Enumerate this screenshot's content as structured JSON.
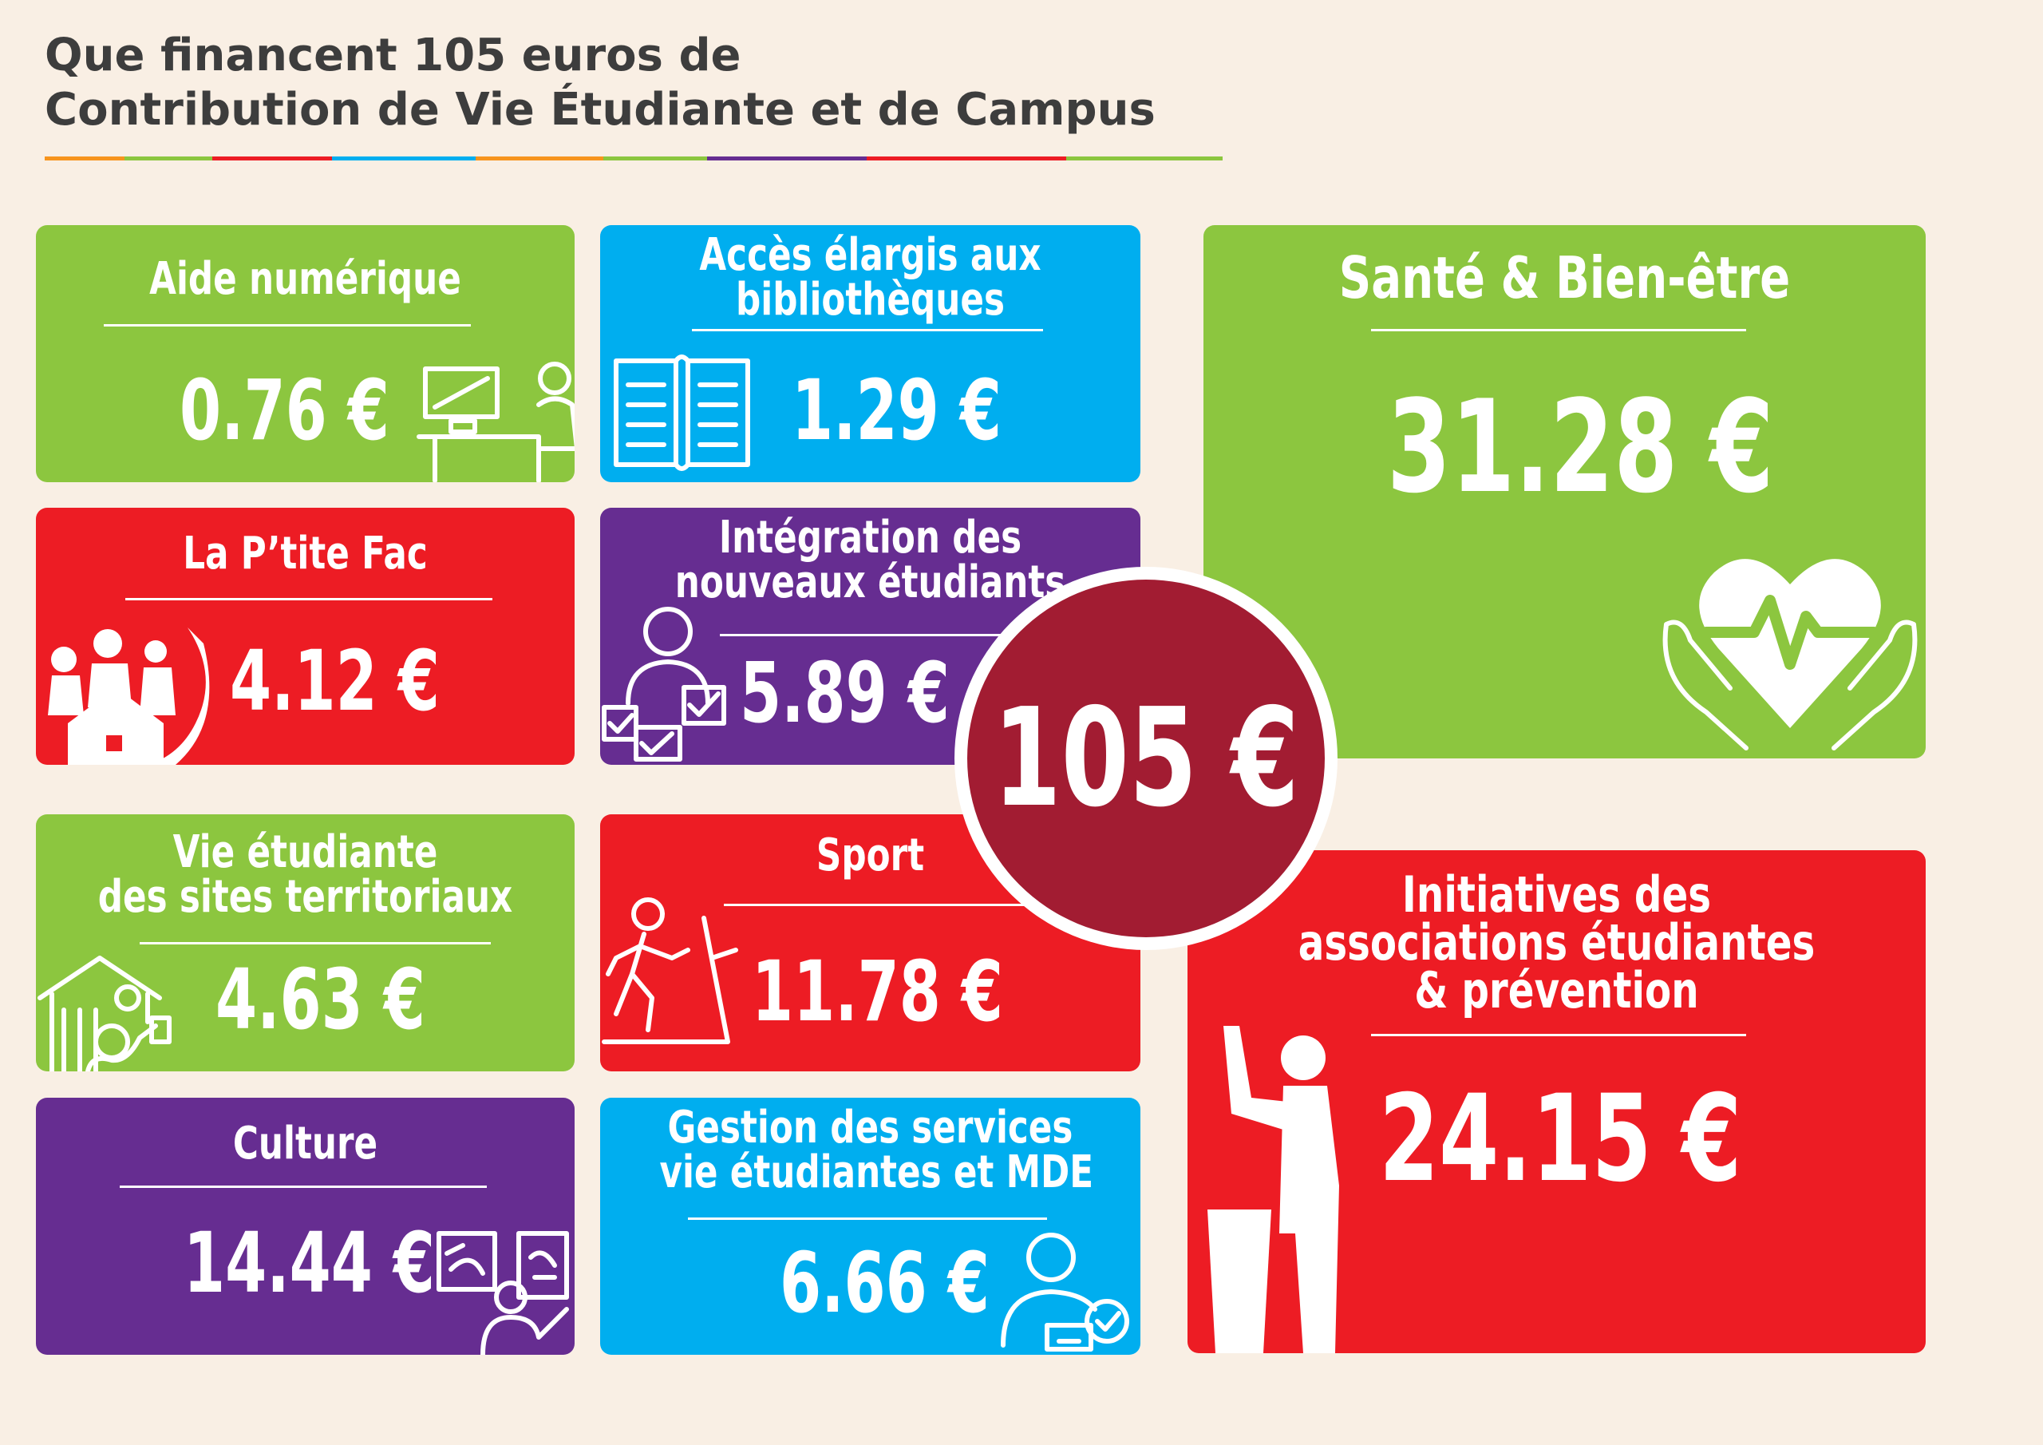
{
  "title": {
    "line1": "Que financent 105 euros de",
    "line2": "Contribution de Vie Étudiante et de Campus"
  },
  "colors": {
    "green": "#8cc63f",
    "blue": "#00aeef",
    "red": "#ed1c24",
    "purple": "#662d91",
    "dark_red": "#a21c32",
    "background": "#f9efe4"
  },
  "total": {
    "label": "105 €",
    "value": 105
  },
  "chart_data": {
    "type": "table",
    "title": "Que financent 105 euros de Contribution de Vie Étudiante et de Campus",
    "unit": "€",
    "total": 105,
    "categories": [
      "Aide numérique",
      "Accès élargis aux bibliothèques",
      "Santé & Bien-être",
      "La P’tite Fac",
      "Intégration des nouveaux étudiants",
      "Vie étudiante des sites territoriaux",
      "Sport",
      "Initiatives des associations étudiantes & prévention",
      "Culture",
      "Gestion des services vie étudiantes et MDE"
    ],
    "values": [
      0.76,
      1.29,
      31.28,
      4.12,
      5.89,
      4.63,
      11.78,
      24.15,
      14.44,
      6.66
    ]
  },
  "cards": [
    {
      "id": "aide-numerique",
      "lines": [
        "Aide numérique"
      ],
      "value_label": "0.76 €",
      "icon": "computer-user-icon",
      "color": "#8cc63f"
    },
    {
      "id": "bibliotheques",
      "lines": [
        "Accès élargis aux",
        "bibliothèques"
      ],
      "value_label": "1.29 €",
      "icon": "open-book-icon",
      "color": "#00aeef"
    },
    {
      "id": "sante",
      "lines": [
        "Santé & Bien-être"
      ],
      "value_label": "31.28 €",
      "icon": "heart-in-hands-icon",
      "color": "#8cc63f"
    },
    {
      "id": "ptite-fac",
      "lines": [
        "La P’tite Fac"
      ],
      "value_label": "4.12 €",
      "icon": "family-house-icon",
      "color": "#ed1c24"
    },
    {
      "id": "integration",
      "lines": [
        "Intégration des",
        "nouveaux étudiants"
      ],
      "value_label": "5.89 €",
      "icon": "person-checklist-icon",
      "color": "#662d91"
    },
    {
      "id": "sites-territoriaux",
      "lines": [
        "Vie étudiante",
        "des sites territoriaux"
      ],
      "value_label": "4.63 €",
      "icon": "campus-building-icon",
      "color": "#8cc63f"
    },
    {
      "id": "sport",
      "lines": [
        "Sport"
      ],
      "value_label": "11.78 €",
      "icon": "treadmill-runner-icon",
      "color": "#ed1c24"
    },
    {
      "id": "initiatives",
      "lines": [
        "Initiatives des",
        "associations étudiantes",
        "& prévention"
      ],
      "value_label": "24.15 €",
      "icon": "speaker-podium-icon",
      "color": "#ed1c24"
    },
    {
      "id": "culture",
      "lines": [
        "Culture"
      ],
      "value_label": "14.44 €",
      "icon": "presentation-board-icon",
      "color": "#662d91"
    },
    {
      "id": "gestion",
      "lines": [
        "Gestion des services",
        "vie étudiantes et MDE"
      ],
      "value_label": "6.66 €",
      "icon": "user-check-icon",
      "color": "#00aeef"
    }
  ]
}
